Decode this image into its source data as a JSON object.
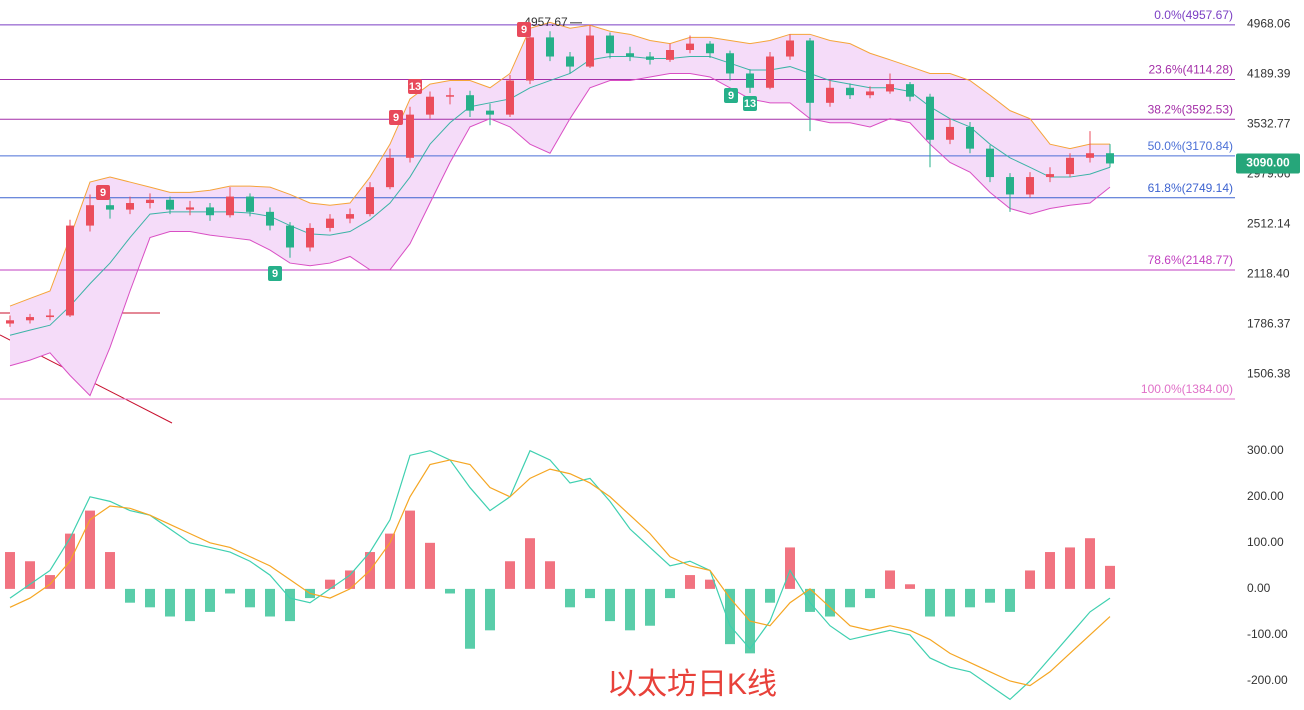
{
  "chart_data": [
    {
      "type": "candlestick",
      "title": "以太坊日K线",
      "log_scale": true,
      "ylim": [
        1245,
        5396
      ],
      "yticks": [
        4968.06,
        4189.39,
        3532.77,
        2979.06,
        2512.14,
        {
          "value": 2118.4,
          "label": "2118.40"
        },
        1786.37,
        1506.38
      ],
      "up_color": "#eb4d5c",
      "down_color": "#26b08a",
      "ohlc": [
        [
          1790,
          1840,
          1770,
          1810
        ],
        [
          1810,
          1850,
          1790,
          1830
        ],
        [
          1830,
          1880,
          1810,
          1840
        ],
        [
          1840,
          2550,
          1830,
          2500
        ],
        [
          2500,
          2780,
          2450,
          2680
        ],
        [
          2680,
          2740,
          2560,
          2640
        ],
        [
          2640,
          2760,
          2600,
          2700
        ],
        [
          2700,
          2790,
          2650,
          2730
        ],
        [
          2730,
          2760,
          2600,
          2640
        ],
        [
          2640,
          2720,
          2590,
          2660
        ],
        [
          2660,
          2700,
          2540,
          2590
        ],
        [
          2590,
          2850,
          2570,
          2760
        ],
        [
          2760,
          2790,
          2580,
          2620
        ],
        [
          2620,
          2660,
          2460,
          2500
        ],
        [
          2500,
          2530,
          2240,
          2320
        ],
        [
          2320,
          2520,
          2290,
          2480
        ],
        [
          2480,
          2600,
          2450,
          2560
        ],
        [
          2560,
          2650,
          2520,
          2600
        ],
        [
          2600,
          2900,
          2580,
          2850
        ],
        [
          2850,
          3250,
          2830,
          3150
        ],
        [
          3150,
          3750,
          3100,
          3650
        ],
        [
          3650,
          3950,
          3600,
          3880
        ],
        [
          3880,
          4000,
          3780,
          3900
        ],
        [
          3900,
          3960,
          3620,
          3700
        ],
        [
          3700,
          3790,
          3520,
          3650
        ],
        [
          3650,
          4180,
          3620,
          4100
        ],
        [
          4100,
          4880,
          4050,
          4750
        ],
        [
          4750,
          4850,
          4380,
          4450
        ],
        [
          4450,
          4520,
          4200,
          4300
        ],
        [
          4300,
          4957.67,
          4280,
          4780
        ],
        [
          4780,
          4830,
          4420,
          4500
        ],
        [
          4500,
          4600,
          4380,
          4450
        ],
        [
          4450,
          4520,
          4330,
          4400
        ],
        [
          4400,
          4650,
          4370,
          4550
        ],
        [
          4550,
          4780,
          4500,
          4650
        ],
        [
          4650,
          4690,
          4430,
          4500
        ],
        [
          4500,
          4540,
          4100,
          4200
        ],
        [
          4200,
          4260,
          3930,
          4000
        ],
        [
          4000,
          4520,
          3980,
          4450
        ],
        [
          4450,
          4800,
          4400,
          4700
        ],
        [
          4700,
          4740,
          3450,
          3800
        ],
        [
          3800,
          4100,
          3750,
          4000
        ],
        [
          4000,
          4060,
          3850,
          3900
        ],
        [
          3900,
          4020,
          3860,
          3950
        ],
        [
          3950,
          4200,
          3920,
          4050
        ],
        [
          4050,
          4080,
          3820,
          3880
        ],
        [
          3880,
          3920,
          3050,
          3350
        ],
        [
          3350,
          3600,
          3300,
          3500
        ],
        [
          3500,
          3560,
          3200,
          3250
        ],
        [
          3250,
          3290,
          2900,
          2950
        ],
        [
          2950,
          2990,
          2620,
          2780
        ],
        [
          2780,
          3000,
          2750,
          2950
        ],
        [
          2950,
          3050,
          2900,
          2980
        ],
        [
          2980,
          3200,
          2950,
          3150
        ],
        [
          3150,
          3450,
          3100,
          3200
        ],
        [
          3200,
          3300,
          3050,
          3090
        ]
      ],
      "band_fill": "#f5dcf9",
      "overlays": [
        {
          "color": "#f5a43a",
          "values": [
            1900,
            1950,
            2000,
            2400,
            2900,
            2950,
            2900,
            2850,
            2800,
            2800,
            2820,
            2860,
            2860,
            2850,
            2780,
            2700,
            2680,
            2700,
            2950,
            3300,
            3850,
            4050,
            4100,
            4100,
            4000,
            4200,
            4900,
            5000,
            4900,
            4950,
            4850,
            4800,
            4700,
            4650,
            4750,
            4750,
            4700,
            4650,
            4700,
            4800,
            4800,
            4700,
            4650,
            4500,
            4400,
            4300,
            4200,
            4200,
            4100,
            3900,
            3700,
            3600,
            3300,
            3250,
            3300,
            3300
          ]
        },
        {
          "color": "#3bb3a6",
          "values": [
            1720,
            1750,
            1780,
            1900,
            2050,
            2200,
            2400,
            2600,
            2620,
            2620,
            2620,
            2620,
            2610,
            2580,
            2500,
            2430,
            2420,
            2450,
            2550,
            2700,
            2950,
            3300,
            3550,
            3750,
            3800,
            3850,
            4000,
            4100,
            4200,
            4400,
            4450,
            4450,
            4420,
            4420,
            4450,
            4450,
            4350,
            4250,
            4250,
            4300,
            4200,
            4100,
            4050,
            4000,
            4000,
            3950,
            3750,
            3600,
            3500,
            3300,
            3150,
            3050,
            2950,
            2950,
            2980,
            3050
          ]
        },
        {
          "color": "#d94fc4",
          "values": [
            1550,
            1580,
            1620,
            1500,
            1400,
            1650,
            2000,
            2400,
            2450,
            2450,
            2420,
            2400,
            2380,
            2300,
            2200,
            2180,
            2200,
            2250,
            2150,
            2150,
            2350,
            2700,
            3100,
            3500,
            3600,
            3500,
            3300,
            3200,
            3600,
            4000,
            4100,
            4100,
            4150,
            4200,
            4200,
            4150,
            4000,
            3850,
            3800,
            3800,
            3600,
            3550,
            3550,
            3500,
            3600,
            3550,
            3300,
            3100,
            3000,
            2800,
            2650,
            2600,
            2650,
            2680,
            2700,
            2850
          ]
        }
      ],
      "levels": [
        {
          "label": "0.0%(4957.67)",
          "value": 4957.67,
          "color": "#7b3fc4"
        },
        {
          "label": "23.6%(4114.28)",
          "value": 4114.28,
          "color": "#a42fa8"
        },
        {
          "label": "38.2%(3592.53)",
          "value": 3592.53,
          "color": "#a42fa8"
        },
        {
          "label": "50.0%(3170.84)",
          "value": 3170.84,
          "color": "#4a6fd6"
        },
        {
          "label": "61.8%(2749.14)",
          "value": 2749.14,
          "color": "#3d63d0"
        },
        {
          "label": "78.6%(2148.77)",
          "value": 2148.77,
          "color": "#c03fc0"
        },
        {
          "label": "100.0%(1384.00)",
          "value": 1384.0,
          "color": "#e070c8"
        }
      ],
      "high_label": 4957.67,
      "last_price": {
        "value": 3090,
        "label": "3090.00",
        "color": "#26a67a"
      },
      "td_marks": [
        {
          "label": "9",
          "color": "#e8495b"
        },
        {
          "label": "9",
          "color": "#26b08a"
        },
        {
          "label": "9",
          "color": "#e8495b"
        },
        {
          "label": "13",
          "color": "#e8495b"
        },
        {
          "label": "9",
          "color": "#e8495b"
        },
        {
          "label": "9",
          "color": "#26b08a"
        },
        {
          "label": "13",
          "color": "#26b08a"
        }
      ]
    },
    {
      "type": "macd",
      "ylim": [
        -263,
        345
      ],
      "yticks": [
        {
          "value": 300,
          "label": "300.00"
        },
        {
          "value": 200,
          "label": "200.00"
        },
        {
          "value": 100,
          "label": "100.00"
        },
        {
          "value": 0,
          "label": "0.00"
        },
        {
          "value": -100,
          "label": "-100.00"
        },
        {
          "value": -200,
          "label": "-200.00"
        }
      ],
      "up_color": "#ee5a6a",
      "down_color": "#3cc49a",
      "histogram": [
        80,
        60,
        30,
        120,
        170,
        80,
        -30,
        -40,
        -60,
        -70,
        -50,
        -10,
        -40,
        -60,
        -70,
        -20,
        20,
        40,
        80,
        120,
        170,
        100,
        -10,
        -130,
        -90,
        60,
        110,
        60,
        -40,
        -20,
        -70,
        -90,
        -80,
        -20,
        30,
        20,
        -120,
        -140,
        -30,
        90,
        -50,
        -60,
        -40,
        -20,
        40,
        10,
        -60,
        -60,
        -40,
        -30,
        -50,
        40,
        80,
        90,
        110,
        50
      ],
      "lines": [
        {
          "color": "#3fd0b0",
          "values": [
            -20,
            10,
            40,
            110,
            200,
            190,
            170,
            160,
            130,
            100,
            90,
            80,
            60,
            30,
            -20,
            -30,
            0,
            30,
            80,
            150,
            290,
            300,
            280,
            220,
            170,
            200,
            300,
            280,
            230,
            240,
            190,
            130,
            90,
            50,
            60,
            40,
            -80,
            -130,
            -70,
            40,
            -30,
            -80,
            -110,
            -100,
            -90,
            -100,
            -150,
            -170,
            -180,
            -210,
            -240,
            -200,
            -150,
            -100,
            -50,
            -20
          ]
        },
        {
          "color": "#f5a623",
          "values": [
            -40,
            -20,
            10,
            60,
            150,
            180,
            175,
            160,
            140,
            120,
            100,
            90,
            70,
            50,
            20,
            -10,
            -20,
            0,
            40,
            100,
            200,
            270,
            280,
            270,
            220,
            200,
            240,
            260,
            250,
            230,
            200,
            160,
            120,
            70,
            50,
            40,
            -20,
            -70,
            -80,
            -30,
            0,
            -40,
            -80,
            -90,
            -80,
            -90,
            -110,
            -140,
            -160,
            -180,
            -200,
            -210,
            -180,
            -140,
            -100,
            -60
          ]
        }
      ]
    }
  ]
}
